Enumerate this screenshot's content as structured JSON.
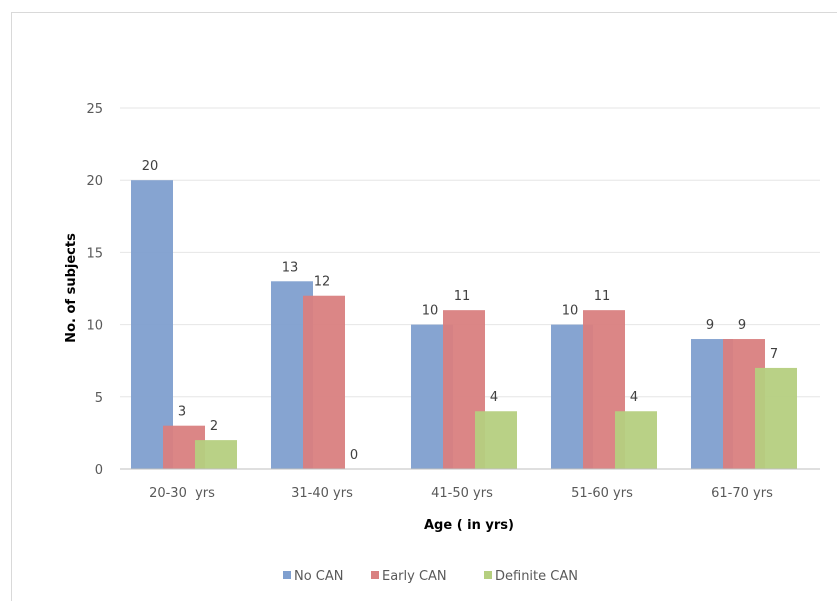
{
  "chart_data": {
    "type": "bar",
    "title": "",
    "xlabel": "Age ( in yrs)",
    "ylabel": "No. of subjects",
    "categories": [
      "20-30  yrs",
      "31-40 yrs",
      "41-50 yrs",
      "51-60 yrs",
      "61-70 yrs"
    ],
    "series": [
      {
        "name": "No CAN",
        "values": [
          20,
          13,
          10,
          10,
          9
        ],
        "color": "#7f9fcf"
      },
      {
        "name": "Early CAN",
        "values": [
          3,
          12,
          11,
          11,
          9
        ],
        "color": "#d98080"
      },
      {
        "name": "Definite CAN",
        "values": [
          2,
          0,
          4,
          4,
          7
        ],
        "color": "#b5cf7f"
      }
    ],
    "ylim": [
      0,
      25
    ],
    "yticks": [
      0,
      5,
      10,
      15,
      20,
      25
    ],
    "grid": true,
    "legend_position": "bottom"
  }
}
